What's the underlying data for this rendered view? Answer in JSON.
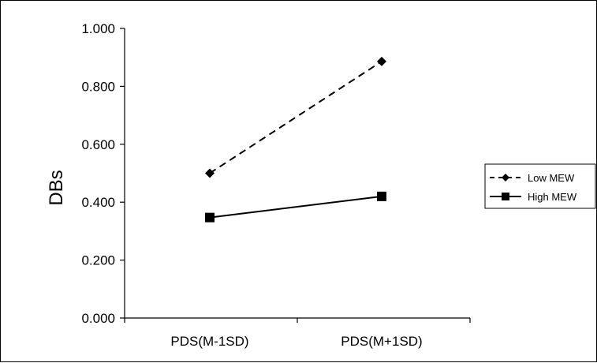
{
  "chart_data": {
    "type": "line",
    "title": "",
    "xlabel": "",
    "ylabel": "DBs",
    "categories": [
      "PDS(M-1SD)",
      "PDS(M+1SD)"
    ],
    "ylim": [
      0,
      1
    ],
    "yticks": [
      "0.000",
      "0.200",
      "0.400",
      "0.600",
      "0.800",
      "1.000"
    ],
    "ytick_values": [
      0,
      0.2,
      0.4,
      0.6,
      0.8,
      1.0
    ],
    "grid": false,
    "legend_position": "right",
    "series": [
      {
        "name": "Low MEW",
        "values": [
          0.5,
          0.886
        ],
        "line_style": "dashed",
        "marker": "diamond",
        "color": "#000000"
      },
      {
        "name": "High MEW",
        "values": [
          0.347,
          0.42
        ],
        "line_style": "solid",
        "marker": "square",
        "color": "#000000"
      }
    ]
  }
}
